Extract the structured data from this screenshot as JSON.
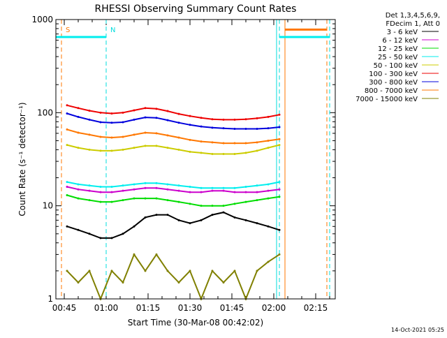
{
  "chart_data": {
    "type": "line",
    "title": "RHESSI Observing Summary Count Rates",
    "xlabel": "Start Time (30-Mar-08 00:42:02)",
    "ylabel": "Count Rate (s⁻¹ detector⁻¹)",
    "x_unit": "minutes after 00:42:02",
    "xlim": [
      0,
      100
    ],
    "ylim": [
      1,
      1000
    ],
    "yscale": "log",
    "grid": false,
    "x_ticks": [
      {
        "value": 3,
        "label": "00:45"
      },
      {
        "value": 18,
        "label": "01:00"
      },
      {
        "value": 33,
        "label": "01:15"
      },
      {
        "value": 48,
        "label": "01:30"
      },
      {
        "value": 63,
        "label": "01:45"
      },
      {
        "value": 78,
        "label": "02:00"
      },
      {
        "value": 93,
        "label": "02:15"
      }
    ],
    "y_ticks": [
      {
        "value": 1,
        "label": "1"
      },
      {
        "value": 10,
        "label": "10"
      },
      {
        "value": 100,
        "label": "100"
      },
      {
        "value": 1000,
        "label": "1000"
      }
    ],
    "legend": {
      "position": "top-right",
      "header_lines": [
        "Det 1,3,4,5,6,9,",
        "FDecim 1, Att 0"
      ]
    },
    "series": [
      {
        "name": "3 - 6 keV",
        "color": "#000000",
        "x": [
          4,
          8,
          12,
          16,
          20,
          24,
          28,
          32,
          36,
          40,
          44,
          48,
          52,
          56,
          60,
          64,
          68,
          72,
          76,
          80
        ],
        "y": [
          6,
          5.5,
          5,
          4.5,
          4.5,
          5,
          6,
          7.5,
          8,
          8,
          7,
          6.5,
          7,
          8,
          8.5,
          7.5,
          7,
          6.5,
          6,
          5.5
        ]
      },
      {
        "name": "6 - 12 keV",
        "color": "#cc00cc",
        "x": [
          4,
          8,
          12,
          16,
          20,
          24,
          28,
          32,
          36,
          40,
          44,
          48,
          52,
          56,
          60,
          64,
          68,
          72,
          76,
          80
        ],
        "y": [
          16,
          15,
          14.5,
          14,
          14,
          14.5,
          15,
          15.5,
          15.5,
          15,
          14.5,
          14,
          14,
          14.5,
          14.5,
          14,
          14,
          14,
          14.5,
          15
        ]
      },
      {
        "name": "12 - 25 keV",
        "color": "#00dd00",
        "x": [
          4,
          8,
          12,
          16,
          20,
          24,
          28,
          32,
          36,
          40,
          44,
          48,
          52,
          56,
          60,
          64,
          68,
          72,
          76,
          80
        ],
        "y": [
          13,
          12,
          11.5,
          11,
          11,
          11.5,
          12,
          12,
          12,
          11.5,
          11,
          10.5,
          10,
          10,
          10,
          10.5,
          11,
          11.5,
          12,
          12.5
        ]
      },
      {
        "name": "25 - 50 keV",
        "color": "#00eeee",
        "x": [
          4,
          8,
          12,
          16,
          20,
          24,
          28,
          32,
          36,
          40,
          44,
          48,
          52,
          56,
          60,
          64,
          68,
          72,
          76,
          80
        ],
        "y": [
          18,
          17,
          16.5,
          16,
          16,
          16.5,
          17,
          17.5,
          17.5,
          17,
          16.5,
          16,
          15.5,
          15.5,
          15.5,
          15.5,
          16,
          16.5,
          17,
          18
        ]
      },
      {
        "name": "50 - 100 keV",
        "color": "#cccc00",
        "x": [
          4,
          8,
          12,
          16,
          20,
          24,
          28,
          32,
          36,
          40,
          44,
          48,
          52,
          56,
          60,
          64,
          68,
          72,
          76,
          80
        ],
        "y": [
          45,
          42,
          40,
          39,
          39,
          40,
          42,
          44,
          44,
          42,
          40,
          38,
          37,
          36,
          36,
          36,
          37,
          39,
          42,
          45
        ]
      },
      {
        "name": "100 - 300 keV",
        "color": "#ee0000",
        "x": [
          4,
          8,
          12,
          16,
          20,
          24,
          28,
          32,
          36,
          40,
          44,
          48,
          52,
          56,
          60,
          64,
          68,
          72,
          76,
          80
        ],
        "y": [
          120,
          112,
          105,
          100,
          98,
          100,
          106,
          112,
          110,
          104,
          97,
          92,
          88,
          85,
          84,
          84,
          85,
          87,
          90,
          95
        ]
      },
      {
        "name": "300 - 800 keV",
        "color": "#0000dd",
        "x": [
          4,
          8,
          12,
          16,
          20,
          24,
          28,
          32,
          36,
          40,
          44,
          48,
          52,
          56,
          60,
          64,
          68,
          72,
          76,
          80
        ],
        "y": [
          98,
          90,
          84,
          79,
          78,
          79,
          84,
          89,
          88,
          83,
          78,
          74,
          71,
          69,
          68,
          67,
          67,
          67,
          68,
          70
        ]
      },
      {
        "name": "800 - 7000 keV",
        "color": "#ff7700",
        "x": [
          4,
          8,
          12,
          16,
          20,
          24,
          28,
          32,
          36,
          40,
          44,
          48,
          52,
          56,
          60,
          64,
          68,
          72,
          76,
          80
        ],
        "y": [
          66,
          61,
          58,
          55,
          54,
          55,
          58,
          61,
          60,
          57,
          54,
          51,
          49,
          48,
          47,
          47,
          47,
          48,
          50,
          52
        ]
      },
      {
        "name": "7000 - 15000 keV",
        "color": "#808000",
        "x": [
          4,
          8,
          12,
          16,
          20,
          24,
          28,
          32,
          36,
          40,
          44,
          48,
          52,
          56,
          60,
          64,
          68,
          72,
          76,
          80
        ],
        "y": [
          2,
          1.5,
          2,
          1,
          2,
          1.5,
          3,
          2,
          3,
          2,
          1.5,
          2,
          1,
          2,
          1.5,
          2,
          1,
          2,
          2.5,
          3
        ]
      }
    ],
    "annotations": [
      {
        "label": "S",
        "x": 2,
        "color": "#ff7700",
        "style": "dashed"
      },
      {
        "label": "N",
        "x": 18,
        "color": "#00dddd",
        "style": "dashed"
      },
      {
        "label": "",
        "x": 79,
        "color": "#00dddd",
        "style": "solid"
      },
      {
        "label": "",
        "x": 80,
        "color": "#00dddd",
        "style": "dashed"
      },
      {
        "label": "",
        "x": 82,
        "color": "#ff7700",
        "style": "solid"
      },
      {
        "label": "",
        "x": 97,
        "color": "#ff7700",
        "style": "dashed"
      },
      {
        "label": "",
        "x": 98,
        "color": "#00dddd",
        "style": "dashed"
      }
    ],
    "status_bars": [
      {
        "color": "#00eeee",
        "x0": 0,
        "x1": 18,
        "y": 650
      },
      {
        "color": "#00eeee",
        "x0": 80,
        "x1": 98,
        "y": 650
      },
      {
        "color": "#ff7700",
        "x0": 82,
        "x1": 97,
        "y": 780
      }
    ]
  },
  "footer": {
    "timestamp": "14-Oct-2021 05:25"
  }
}
